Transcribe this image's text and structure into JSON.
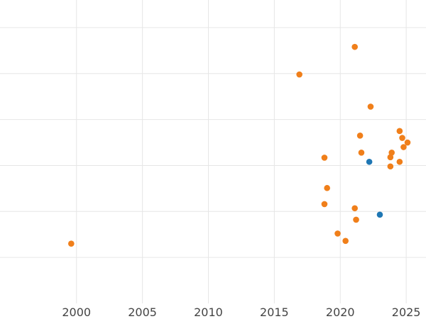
{
  "chart_data": {
    "type": "scatter",
    "title": "",
    "xlabel": "",
    "ylabel": "",
    "xlim": [
      1994.2,
      2026.5
    ],
    "ylim": [
      0,
      6.6
    ],
    "x_ticks": [
      2000,
      2005,
      2010,
      2015,
      2020,
      2025
    ],
    "x_tick_labels": [
      "2000",
      "2005",
      "2010",
      "2015",
      "2020",
      "2025"
    ],
    "y_grid": [
      1,
      2,
      3,
      4,
      5,
      6
    ],
    "grid": true,
    "legend": "none",
    "series": [
      {
        "color": "#f07f1a",
        "points": [
          {
            "x": 1999.6,
            "y": 1.3
          },
          {
            "x": 2016.9,
            "y": 4.98
          },
          {
            "x": 2018.8,
            "y": 3.17
          },
          {
            "x": 2018.8,
            "y": 2.16
          },
          {
            "x": 2019.0,
            "y": 2.51
          },
          {
            "x": 2019.8,
            "y": 1.52
          },
          {
            "x": 2020.4,
            "y": 1.36
          },
          {
            "x": 2021.1,
            "y": 2.07
          },
          {
            "x": 2021.2,
            "y": 1.82
          },
          {
            "x": 2021.1,
            "y": 5.58
          },
          {
            "x": 2021.5,
            "y": 3.65
          },
          {
            "x": 2021.6,
            "y": 3.28
          },
          {
            "x": 2022.3,
            "y": 4.28
          },
          {
            "x": 2023.8,
            "y": 3.18
          },
          {
            "x": 2023.9,
            "y": 3.28
          },
          {
            "x": 2023.8,
            "y": 2.98
          },
          {
            "x": 2024.5,
            "y": 3.08
          },
          {
            "x": 2024.5,
            "y": 3.75
          },
          {
            "x": 2024.7,
            "y": 3.6
          },
          {
            "x": 2024.8,
            "y": 3.4
          },
          {
            "x": 2025.1,
            "y": 3.5
          }
        ]
      },
      {
        "color": "#1f77b4",
        "points": [
          {
            "x": 2022.2,
            "y": 3.08
          },
          {
            "x": 2023.0,
            "y": 1.93
          }
        ]
      }
    ]
  }
}
